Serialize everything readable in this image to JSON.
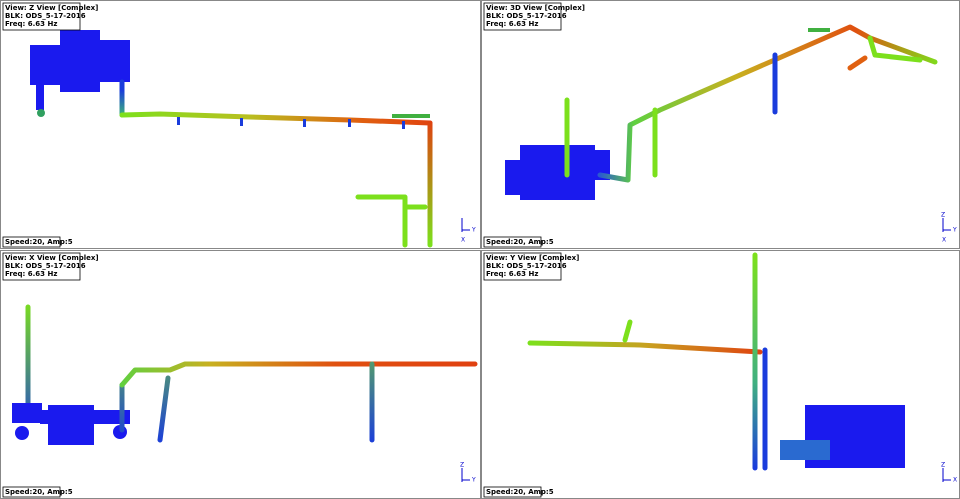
{
  "panels": [
    {
      "view": "View: Z View [Complex]",
      "blk": "BLK: ODS_5-17-2016",
      "freq": "Freq: 6.63 Hz",
      "status": "Speed:20, Amp:5",
      "axes": [
        "Y",
        "X"
      ]
    },
    {
      "view": "View: 3D View [Complex]",
      "blk": "BLK: ODS_5-17-2016",
      "freq": "Freq: 6.63 Hz",
      "status": "Speed:20, Amp:5",
      "axes": [
        "Z",
        "Y",
        "X"
      ]
    },
    {
      "view": "View: X View [Complex]",
      "blk": "BLK: ODS_5-17-2016",
      "freq": "Freq: 6.63 Hz",
      "status": "Speed:20, Amp:5",
      "axes": [
        "Z",
        "Y"
      ]
    },
    {
      "view": "View: Y View [Complex]",
      "blk": "BLK: ODS_5-17-2016",
      "freq": "Freq: 6.63 Hz",
      "status": "Speed:20, Amp:5",
      "axes": [
        "Z",
        "X"
      ]
    }
  ]
}
